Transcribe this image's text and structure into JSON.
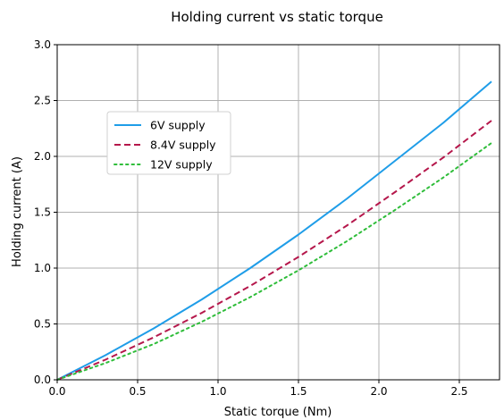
{
  "chart_data": {
    "type": "line",
    "title": "Holding current vs static torque",
    "xlabel": "Static torque (Nm)",
    "ylabel": "Holding current (A)",
    "xlim": [
      0.0,
      2.75
    ],
    "ylim": [
      0.0,
      3.0
    ],
    "xticks": [
      "0.0",
      "0.5",
      "1.0",
      "1.5",
      "2.0",
      "2.5"
    ],
    "yticks": [
      "0.0",
      "0.5",
      "1.0",
      "1.5",
      "2.0",
      "2.5",
      "3.0"
    ],
    "grid": true,
    "legend_position": "upper-left",
    "x": [
      0.0,
      0.3,
      0.6,
      0.9,
      1.2,
      1.5,
      1.8,
      2.1,
      2.4,
      2.7
    ],
    "series": [
      {
        "name": "6V supply",
        "color": "#1f9de8",
        "style": "solid",
        "values": [
          0.0,
          0.22,
          0.46,
          0.72,
          1.0,
          1.3,
          1.62,
          1.96,
          2.3,
          2.67
        ]
      },
      {
        "name": "8.4V supply",
        "color": "#b5174b",
        "style": "dashed",
        "values": [
          0.0,
          0.18,
          0.38,
          0.6,
          0.84,
          1.1,
          1.38,
          1.68,
          1.99,
          2.32
        ]
      },
      {
        "name": "12V supply",
        "color": "#2fbd3a",
        "style": "dotted",
        "values": [
          0.0,
          0.15,
          0.32,
          0.52,
          0.74,
          0.98,
          1.24,
          1.52,
          1.81,
          2.12
        ]
      }
    ]
  }
}
